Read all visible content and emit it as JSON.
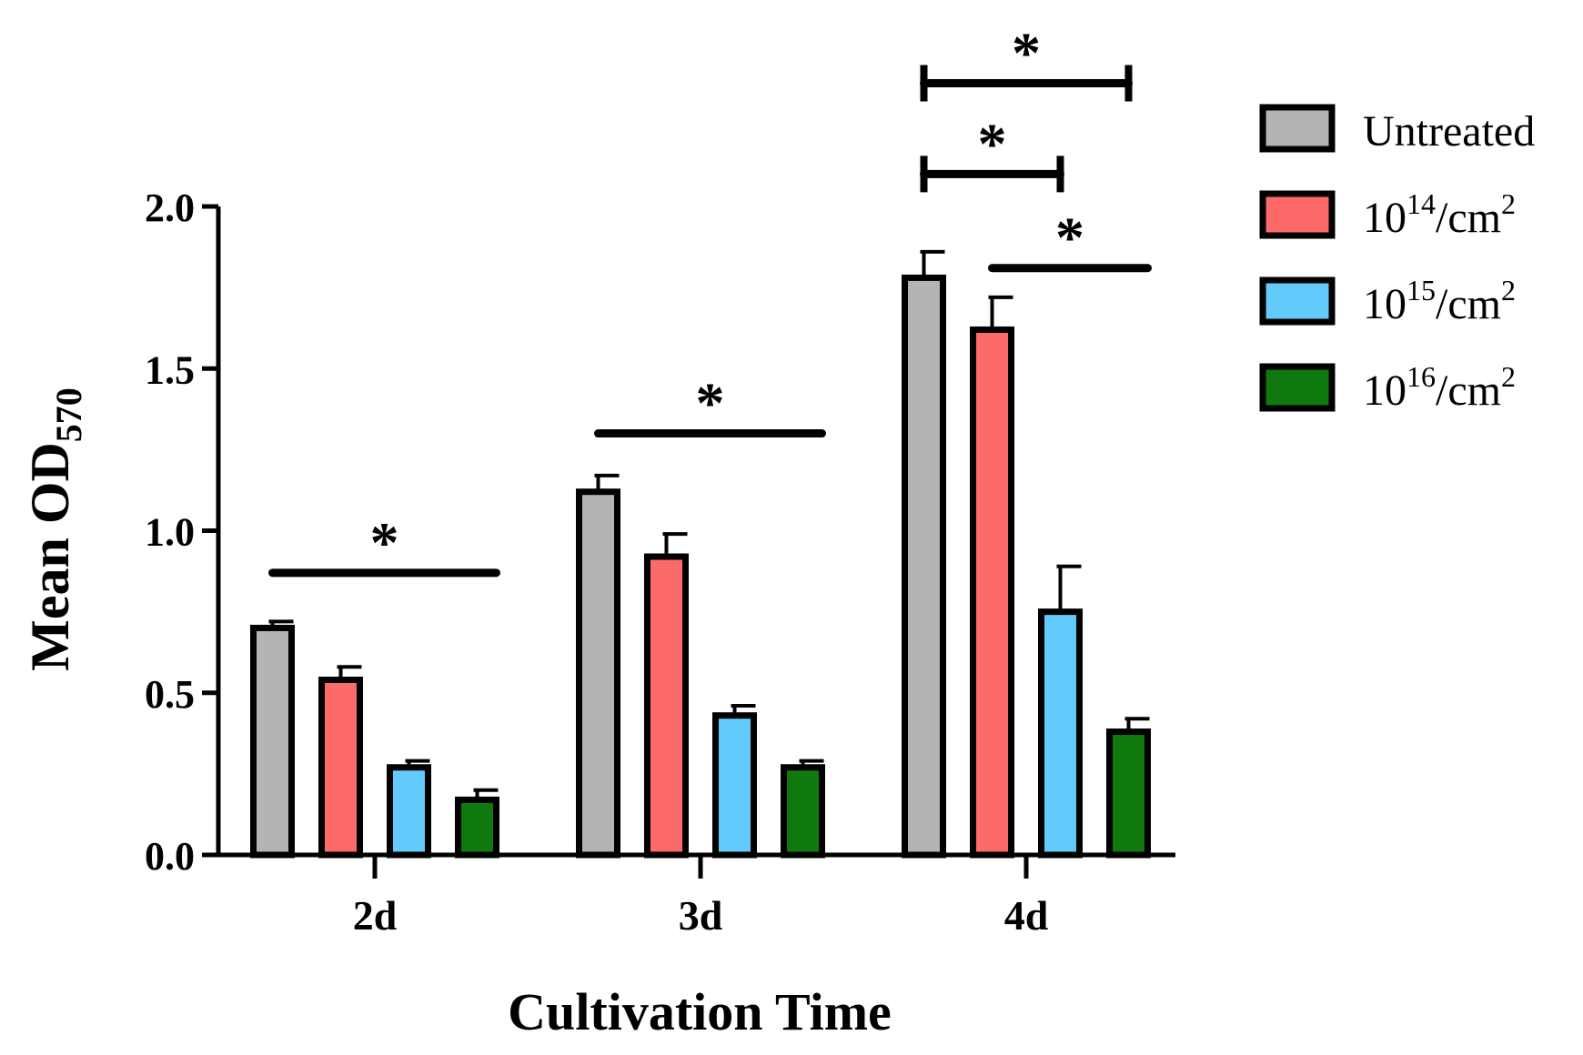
{
  "chart_data": {
    "type": "bar",
    "xlabel": "Cultivation Time",
    "ylabel": {
      "base": "Mean OD",
      "subscript": "570"
    },
    "ylim": [
      0,
      2
    ],
    "yticks": [
      {
        "value": 0,
        "label": "0.0"
      },
      {
        "value": 0.5,
        "label": "0.5"
      },
      {
        "value": 1,
        "label": "1.0"
      },
      {
        "value": 1.5,
        "label": "1.5"
      },
      {
        "value": 2,
        "label": "2.0"
      }
    ],
    "categories": [
      "2d",
      "3d",
      "4d"
    ],
    "series": [
      {
        "name": "Untreated",
        "legend": {
          "base": "Untreated",
          "sup": "",
          "unit": "",
          "sup2": ""
        },
        "color": "#b4b4b4",
        "values": [
          0.7,
          1.12,
          1.78
        ],
        "errors": [
          0.02,
          0.05,
          0.08
        ]
      },
      {
        "name": "10^14/cm^2",
        "legend": {
          "base": "10",
          "sup": "14",
          "unit": "/cm",
          "sup2": "2"
        },
        "color": "#fd6a6a",
        "values": [
          0.54,
          0.92,
          1.62
        ],
        "errors": [
          0.04,
          0.07,
          0.1
        ]
      },
      {
        "name": "10^15/cm^2",
        "legend": {
          "base": "10",
          "sup": "15",
          "unit": "/cm",
          "sup2": "2"
        },
        "color": "#62cbfb",
        "values": [
          0.27,
          0.43,
          0.75
        ],
        "errors": [
          0.02,
          0.03,
          0.14
        ]
      },
      {
        "name": "10^16/cm^2",
        "legend": {
          "base": "10",
          "sup": "16",
          "unit": "/cm",
          "sup2": "2"
        },
        "color": "#0f780f",
        "values": [
          0.17,
          0.27,
          0.38
        ],
        "errors": [
          0.03,
          0.02,
          0.04
        ]
      }
    ],
    "significance": [
      {
        "category": 0,
        "from": 0,
        "to": 3,
        "style": "line",
        "level": 0.87,
        "label": "*"
      },
      {
        "category": 1,
        "from": 0,
        "to": 3,
        "style": "line",
        "level": 1.3,
        "label": "*"
      },
      {
        "category": 2,
        "from": 1,
        "to": 3,
        "style": "line",
        "level": 1.81,
        "label": "*"
      },
      {
        "category": 2,
        "from": 0,
        "to": 2,
        "style": "bracket",
        "level": 2.1,
        "label": "*"
      },
      {
        "category": 2,
        "from": 0,
        "to": 3,
        "style": "bracket",
        "level": 2.38,
        "label": "*"
      }
    ],
    "legend_position": "right"
  }
}
